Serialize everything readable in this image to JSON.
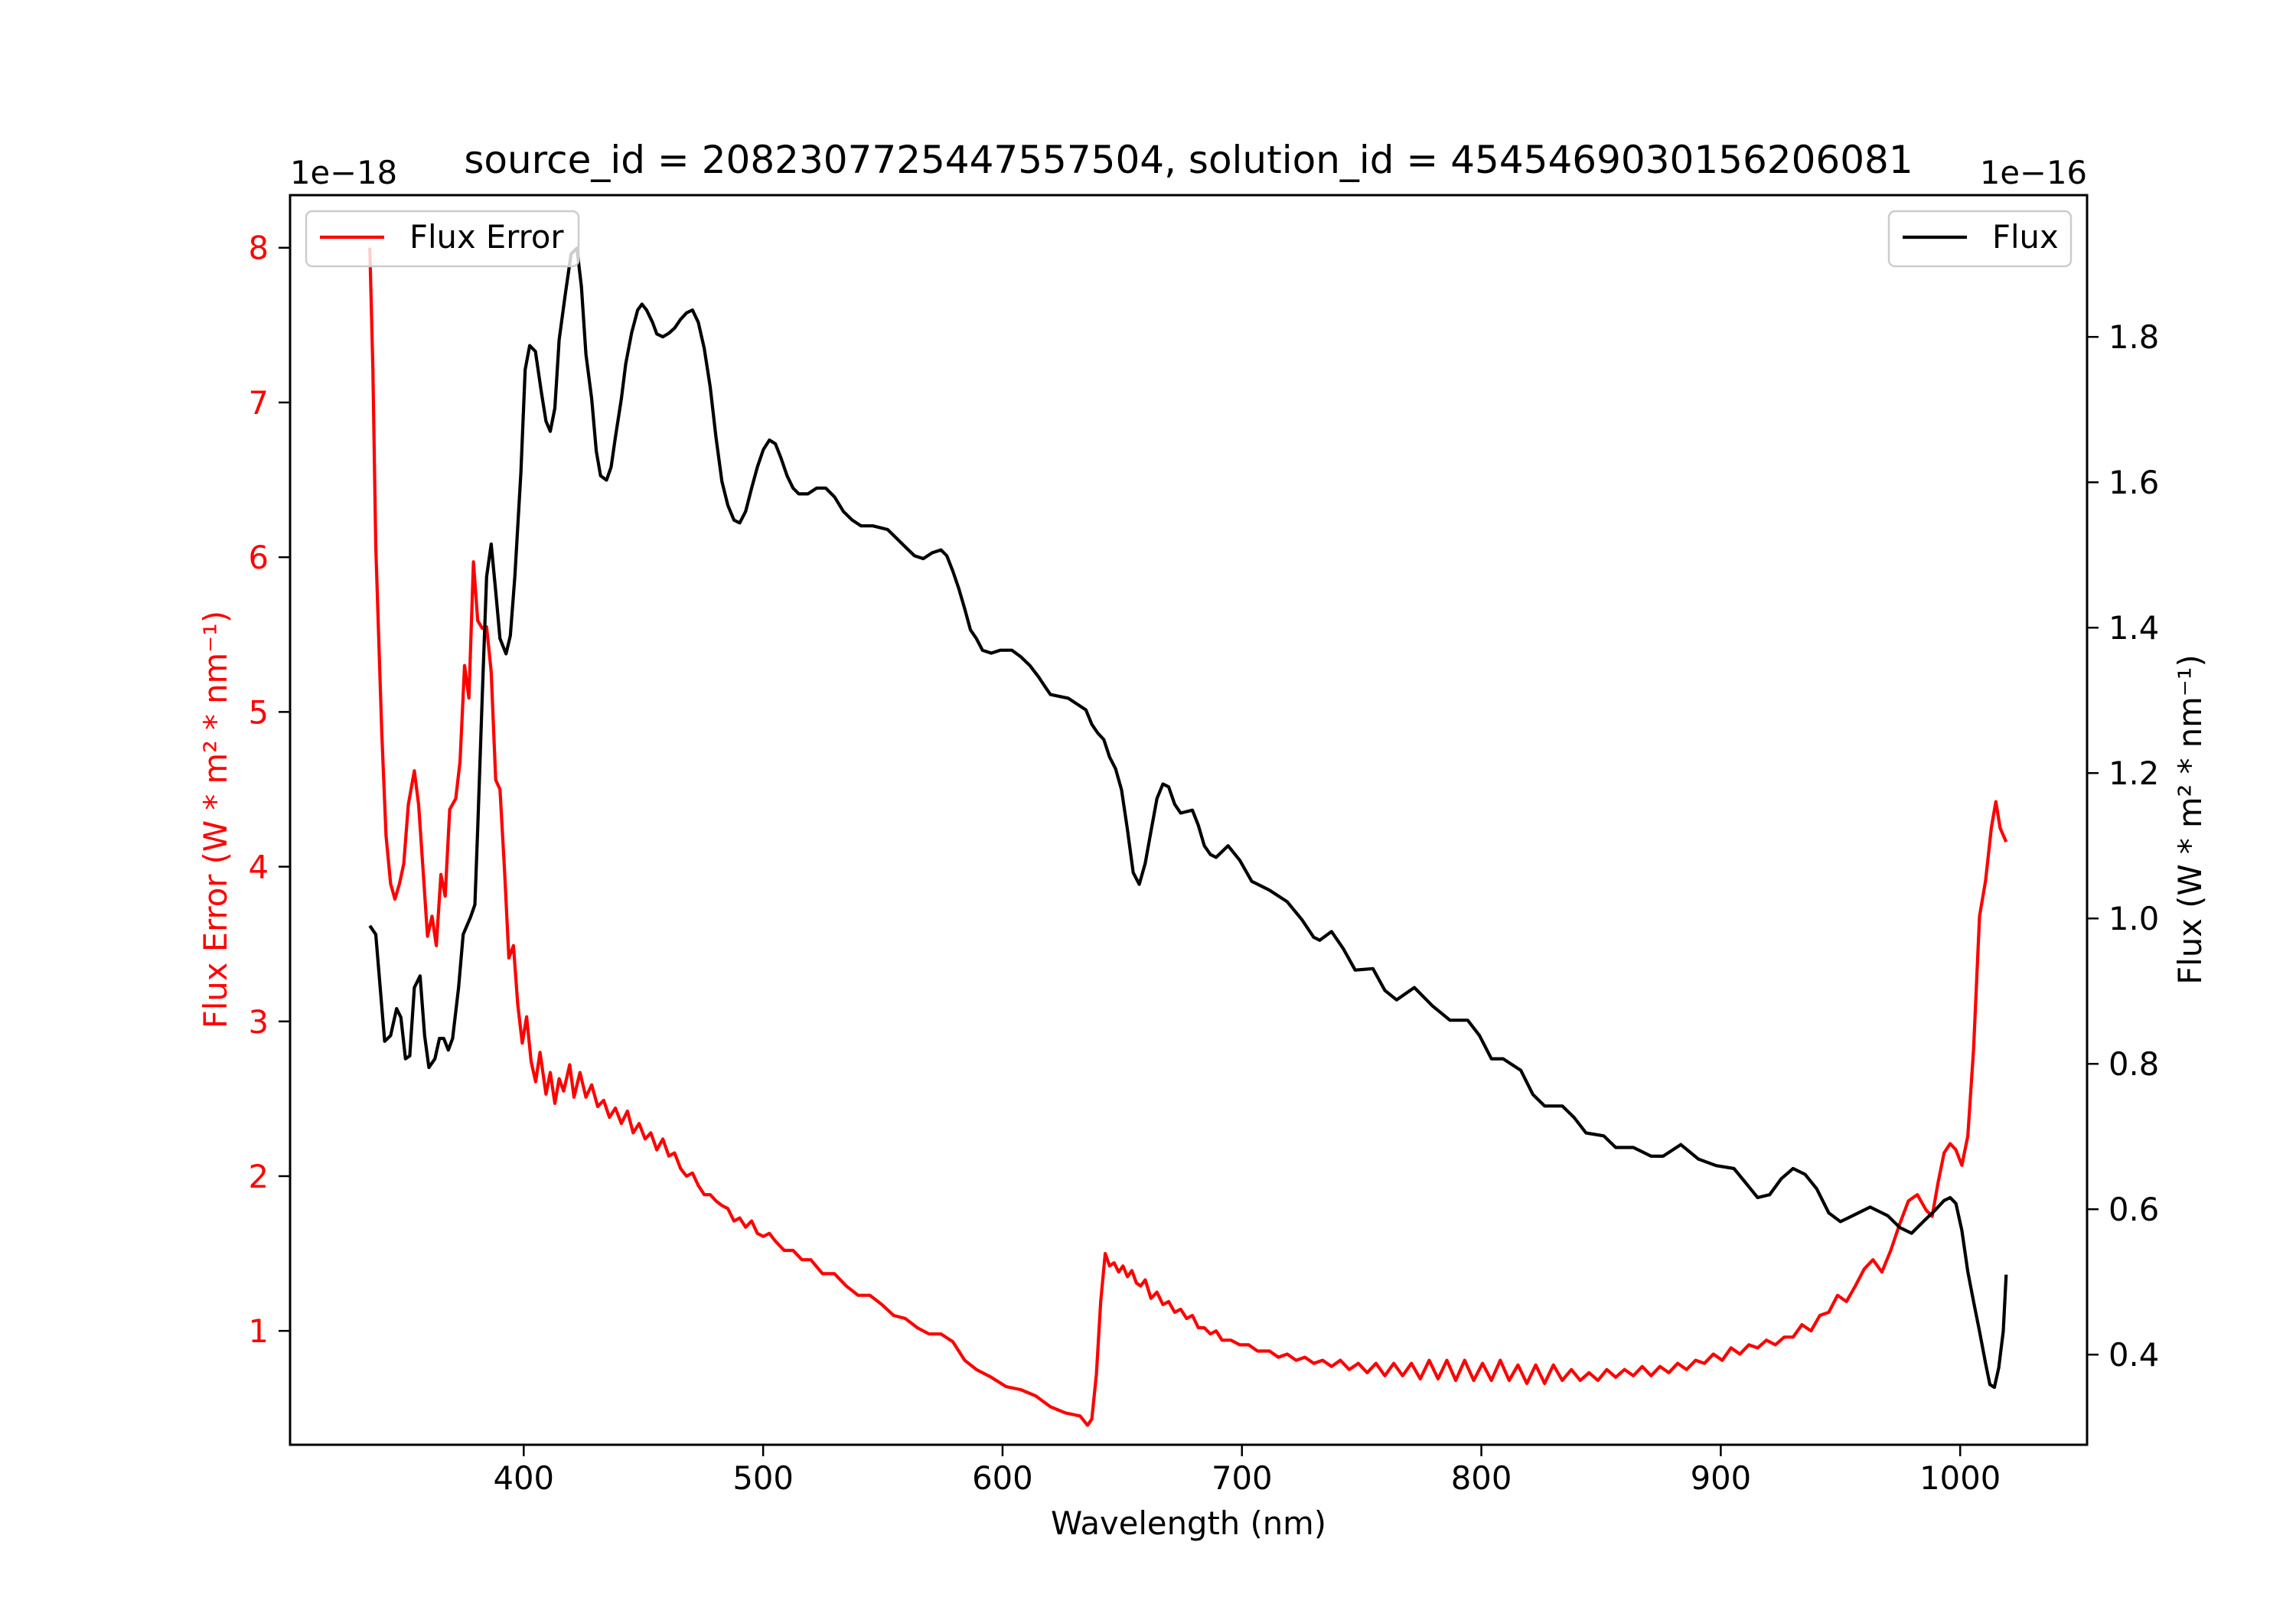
{
  "chart_data": {
    "type": "line",
    "title": "source_id = 2082307725447557504, solution_id = 4545469030156206081",
    "xlabel": "Wavelength (nm)",
    "ylabel_left": "Flux Error (W * m² * nm⁻¹)",
    "ylabel_right": "Flux (W * m² * nm⁻¹)",
    "offset_left": "1e−18",
    "offset_right": "1e−16",
    "xlim": [
      302.4,
      1053.0
    ],
    "ylim_left": [
      0.264,
      8.34
    ],
    "ylim_right": [
      0.276,
      1.995
    ],
    "xticks": [
      400,
      500,
      600,
      700,
      800,
      900,
      1000
    ],
    "yticks_left": [
      1,
      2,
      3,
      4,
      5,
      6,
      7,
      8
    ],
    "yticks_right": [
      "0.4",
      "0.6",
      "0.8",
      "1.0",
      "1.2",
      "1.4",
      "1.6",
      "1.8"
    ],
    "grid": false,
    "colors": {
      "flux_error": "#ff0000",
      "flux": "#000000"
    },
    "legend_left": {
      "label": "Flux Error",
      "placement": "top-left"
    },
    "legend_right": {
      "label": "Flux",
      "placement": "top-right"
    },
    "series": [
      {
        "name": "Flux Error",
        "axis": "left",
        "x": [
          335.7,
          337.0,
          338.2,
          340.7,
          342.5,
          344.4,
          346.2,
          348.1,
          349.9,
          351.8,
          354.3,
          356.1,
          358.0,
          359.8,
          361.7,
          363.5,
          365.4,
          367.2,
          369.1,
          371.6,
          373.4,
          375.3,
          377.1,
          379.0,
          380.8,
          382.7,
          384.5,
          386.4,
          388.3,
          390.1,
          392.0,
          393.8,
          395.7,
          397.5,
          399.4,
          401.2,
          403.1,
          405.0,
          406.8,
          409.3,
          411.1,
          413.0,
          414.8,
          416.7,
          419.2,
          421.0,
          423.5,
          426.0,
          428.4,
          430.9,
          433.4,
          435.8,
          438.3,
          440.8,
          443.3,
          445.7,
          448.2,
          450.7,
          453.1,
          455.6,
          458.1,
          460.6,
          463.0,
          465.5,
          468.0,
          470.5,
          472.9,
          475.4,
          477.9,
          480.3,
          482.8,
          485.3,
          487.8,
          490.2,
          492.7,
          495.2,
          497.6,
          500.1,
          502.6,
          505.1,
          508.8,
          512.5,
          516.2,
          519.9,
          524.8,
          529.8,
          534.7,
          539.7,
          544.6,
          549.6,
          554.5,
          559.4,
          564.4,
          569.3,
          574.3,
          579.2,
          584.2,
          589.1,
          595.3,
          601.5,
          607.6,
          613.8,
          620.0,
          626.2,
          632.4,
          635.5,
          637.3,
          639.2,
          641.0,
          642.9,
          644.7,
          646.6,
          648.5,
          650.3,
          652.2,
          654.0,
          655.9,
          657.7,
          659.6,
          662.0,
          664.5,
          667.0,
          669.4,
          671.9,
          674.4,
          676.9,
          679.3,
          681.8,
          684.3,
          686.8,
          689.2,
          691.7,
          695.4,
          699.1,
          702.8,
          706.5,
          711.5,
          715.2,
          718.9,
          722.6,
          726.3,
          730.0,
          733.7,
          737.4,
          741.1,
          744.8,
          748.6,
          752.3,
          756.0,
          759.7,
          763.4,
          767.1,
          770.8,
          774.5,
          778.2,
          781.9,
          785.6,
          789.3,
          793.0,
          796.8,
          800.5,
          804.2,
          807.9,
          811.6,
          815.3,
          819.0,
          822.7,
          826.4,
          830.1,
          833.8,
          837.6,
          841.3,
          845.0,
          848.7,
          852.4,
          856.1,
          859.8,
          863.5,
          867.2,
          870.9,
          874.6,
          878.3,
          882.0,
          885.7,
          889.5,
          893.2,
          896.9,
          900.6,
          904.3,
          908.0,
          911.7,
          915.4,
          919.1,
          922.8,
          926.5,
          930.2,
          933.9,
          937.7,
          941.4,
          945.1,
          948.8,
          952.5,
          956.2,
          959.9,
          963.6,
          967.3,
          971.0,
          974.7,
          978.4,
          982.1,
          985.8,
          988.3,
          990.8,
          993.3,
          995.8,
          998.2,
          1000.7,
          1003.2,
          1005.6,
          1008.1,
          1010.6,
          1013.0,
          1014.9,
          1016.7,
          1019.2
        ],
        "y": [
          8.0,
          7.22,
          6.07,
          4.87,
          4.2,
          3.89,
          3.79,
          3.89,
          4.02,
          4.4,
          4.62,
          4.4,
          3.97,
          3.55,
          3.68,
          3.49,
          3.95,
          3.81,
          4.37,
          4.44,
          4.68,
          5.3,
          5.09,
          5.97,
          5.59,
          5.54,
          5.55,
          5.26,
          4.56,
          4.5,
          3.97,
          3.41,
          3.49,
          3.11,
          2.86,
          3.03,
          2.74,
          2.61,
          2.8,
          2.53,
          2.67,
          2.47,
          2.63,
          2.55,
          2.72,
          2.51,
          2.67,
          2.51,
          2.59,
          2.45,
          2.49,
          2.38,
          2.44,
          2.34,
          2.42,
          2.28,
          2.34,
          2.24,
          2.28,
          2.17,
          2.24,
          2.13,
          2.15,
          2.05,
          2.0,
          2.02,
          1.94,
          1.88,
          1.88,
          1.84,
          1.81,
          1.79,
          1.71,
          1.73,
          1.67,
          1.71,
          1.63,
          1.61,
          1.63,
          1.58,
          1.52,
          1.52,
          1.46,
          1.46,
          1.37,
          1.37,
          1.29,
          1.23,
          1.23,
          1.17,
          1.1,
          1.08,
          1.02,
          0.98,
          0.98,
          0.93,
          0.81,
          0.75,
          0.7,
          0.64,
          0.62,
          0.58,
          0.51,
          0.47,
          0.45,
          0.39,
          0.43,
          0.72,
          1.19,
          1.5,
          1.42,
          1.44,
          1.38,
          1.42,
          1.35,
          1.39,
          1.31,
          1.29,
          1.33,
          1.21,
          1.25,
          1.17,
          1.19,
          1.12,
          1.14,
          1.08,
          1.1,
          1.02,
          1.02,
          0.98,
          1.0,
          0.94,
          0.94,
          0.91,
          0.91,
          0.87,
          0.87,
          0.83,
          0.85,
          0.81,
          0.83,
          0.79,
          0.81,
          0.77,
          0.81,
          0.75,
          0.79,
          0.73,
          0.79,
          0.71,
          0.79,
          0.71,
          0.79,
          0.69,
          0.81,
          0.69,
          0.81,
          0.68,
          0.81,
          0.68,
          0.79,
          0.68,
          0.81,
          0.68,
          0.78,
          0.66,
          0.78,
          0.66,
          0.78,
          0.68,
          0.75,
          0.68,
          0.73,
          0.68,
          0.75,
          0.7,
          0.75,
          0.71,
          0.77,
          0.71,
          0.77,
          0.73,
          0.79,
          0.75,
          0.81,
          0.79,
          0.85,
          0.81,
          0.89,
          0.85,
          0.91,
          0.89,
          0.94,
          0.91,
          0.96,
          0.96,
          1.04,
          1.0,
          1.1,
          1.12,
          1.23,
          1.19,
          1.29,
          1.4,
          1.46,
          1.38,
          1.52,
          1.69,
          1.84,
          1.88,
          1.78,
          1.74,
          1.96,
          2.15,
          2.21,
          2.17,
          2.07,
          2.26,
          2.82,
          3.68,
          3.91,
          4.25,
          4.42,
          4.25,
          4.16
        ]
      },
      {
        "name": "Flux",
        "axis": "right",
        "x": [
          335.7,
          338.2,
          341.9,
          344.4,
          346.9,
          348.7,
          350.6,
          352.4,
          354.3,
          356.7,
          358.6,
          360.4,
          362.9,
          364.8,
          366.6,
          368.5,
          370.3,
          372.8,
          374.7,
          377.8,
          379.6,
          380.8,
          382.7,
          384.5,
          386.4,
          388.3,
          390.1,
          392.6,
          394.4,
          396.3,
          398.8,
          400.6,
          402.5,
          404.9,
          407.4,
          409.3,
          411.1,
          413.0,
          414.8,
          417.3,
          419.8,
          422.2,
          424.1,
          426.0,
          428.4,
          430.3,
          432.1,
          434.6,
          436.5,
          438.3,
          440.8,
          442.6,
          445.1,
          447.6,
          449.4,
          451.3,
          453.8,
          455.6,
          458.1,
          460.6,
          463.0,
          465.5,
          468.0,
          470.5,
          472.9,
          475.4,
          477.9,
          480.3,
          482.8,
          485.3,
          487.8,
          490.2,
          492.7,
          495.2,
          497.6,
          500.1,
          502.6,
          505.1,
          507.5,
          510.0,
          512.5,
          514.9,
          518.7,
          522.4,
          526.1,
          529.8,
          533.5,
          537.2,
          540.9,
          545.8,
          552.0,
          555.7,
          559.4,
          563.2,
          566.9,
          570.6,
          574.3,
          576.7,
          579.2,
          581.7,
          584.2,
          586.6,
          589.1,
          591.6,
          595.3,
          599.0,
          603.9,
          607.6,
          611.4,
          615.1,
          617.5,
          620.0,
          627.4,
          634.8,
          637.3,
          639.8,
          642.3,
          644.7,
          647.2,
          649.7,
          652.1,
          654.6,
          657.1,
          659.6,
          662.0,
          664.5,
          667.0,
          669.4,
          671.9,
          674.4,
          679.3,
          681.8,
          684.3,
          686.8,
          689.2,
          694.2,
          699.1,
          704.1,
          711.5,
          718.9,
          725.1,
          730.0,
          732.5,
          737.4,
          742.4,
          747.3,
          754.7,
          759.7,
          764.6,
          772.0,
          779.5,
          786.9,
          794.3,
          799.2,
          804.2,
          809.1,
          816.5,
          821.5,
          826.4,
          833.8,
          838.8,
          843.7,
          851.1,
          856.1,
          863.5,
          870.9,
          875.9,
          883.3,
          890.7,
          898.1,
          905.5,
          910.5,
          915.4,
          920.4,
          925.3,
          930.2,
          935.2,
          940.1,
          945.1,
          950.0,
          955.0,
          962.4,
          969.8,
          974.7,
          979.7,
          984.6,
          989.6,
          993.3,
          995.8,
          998.2,
          1000.7,
          1003.2,
          1005.6,
          1008.1,
          1010.6,
          1012.4,
          1014.3,
          1016.1,
          1018.0,
          1019.2
        ],
        "y": [
          0.99,
          0.978,
          0.831,
          0.839,
          0.876,
          0.864,
          0.807,
          0.811,
          0.905,
          0.921,
          0.839,
          0.795,
          0.807,
          0.835,
          0.835,
          0.819,
          0.835,
          0.905,
          0.978,
          1.002,
          1.019,
          1.124,
          1.308,
          1.47,
          1.515,
          1.45,
          1.385,
          1.364,
          1.389,
          1.47,
          1.613,
          1.755,
          1.788,
          1.78,
          1.723,
          1.684,
          1.67,
          1.702,
          1.796,
          1.857,
          1.914,
          1.922,
          1.869,
          1.776,
          1.715,
          1.643,
          1.609,
          1.603,
          1.621,
          1.662,
          1.715,
          1.763,
          1.806,
          1.837,
          1.845,
          1.837,
          1.82,
          1.804,
          1.8,
          1.805,
          1.812,
          1.824,
          1.833,
          1.837,
          1.82,
          1.784,
          1.731,
          1.662,
          1.601,
          1.568,
          1.548,
          1.544,
          1.56,
          1.592,
          1.621,
          1.645,
          1.658,
          1.653,
          1.633,
          1.609,
          1.592,
          1.584,
          1.584,
          1.592,
          1.592,
          1.58,
          1.56,
          1.548,
          1.54,
          1.54,
          1.535,
          1.523,
          1.511,
          1.499,
          1.495,
          1.503,
          1.507,
          1.499,
          1.478,
          1.454,
          1.426,
          1.397,
          1.385,
          1.369,
          1.365,
          1.369,
          1.369,
          1.36,
          1.348,
          1.332,
          1.32,
          1.308,
          1.303,
          1.287,
          1.267,
          1.255,
          1.246,
          1.222,
          1.206,
          1.177,
          1.124,
          1.063,
          1.047,
          1.076,
          1.12,
          1.165,
          1.185,
          1.181,
          1.157,
          1.145,
          1.149,
          1.128,
          1.1,
          1.088,
          1.084,
          1.1,
          1.08,
          1.051,
          1.039,
          1.023,
          0.998,
          0.974,
          0.97,
          0.982,
          0.958,
          0.929,
          0.931,
          0.901,
          0.888,
          0.905,
          0.88,
          0.86,
          0.86,
          0.839,
          0.807,
          0.807,
          0.791,
          0.758,
          0.742,
          0.742,
          0.726,
          0.705,
          0.701,
          0.685,
          0.685,
          0.673,
          0.673,
          0.689,
          0.669,
          0.66,
          0.656,
          0.636,
          0.616,
          0.62,
          0.642,
          0.656,
          0.648,
          0.628,
          0.595,
          0.583,
          0.591,
          0.603,
          0.591,
          0.575,
          0.567,
          0.583,
          0.599,
          0.612,
          0.616,
          0.608,
          0.571,
          0.514,
          0.473,
          0.432,
          0.388,
          0.359,
          0.355,
          0.382,
          0.432,
          0.51
        ]
      }
    ]
  }
}
